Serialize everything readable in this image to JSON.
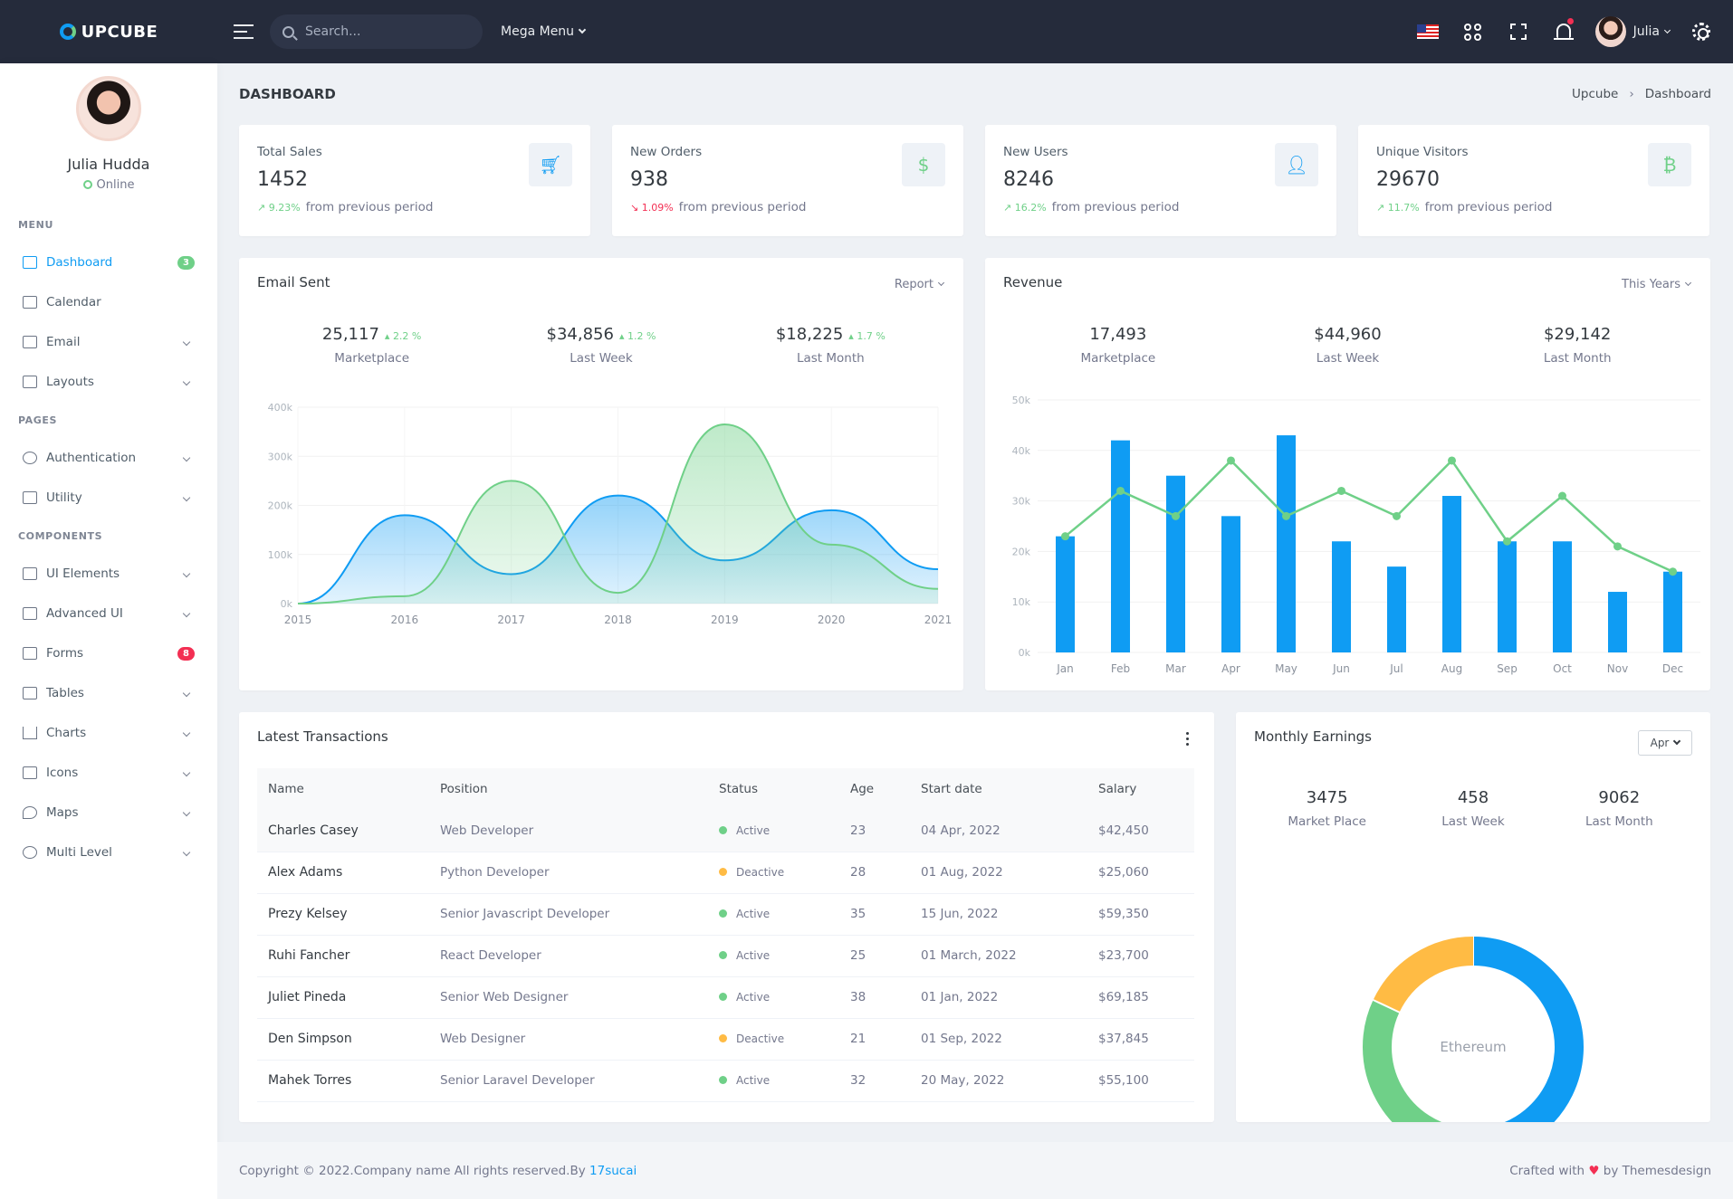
{
  "topbar": {
    "brand": "UPCUBE",
    "search_placeholder": "Search...",
    "mega_menu": "Mega Menu",
    "user_name": "Julia"
  },
  "sidebar": {
    "profile_name": "Julia Hudda",
    "profile_status": "Online",
    "sections": {
      "menu": "MENU",
      "pages": "PAGES",
      "components": "COMPONENTS"
    },
    "items": [
      {
        "label": "Dashboard",
        "badge": "3"
      },
      {
        "label": "Calendar"
      },
      {
        "label": "Email"
      },
      {
        "label": "Layouts"
      },
      {
        "label": "Authentication"
      },
      {
        "label": "Utility"
      },
      {
        "label": "UI Elements"
      },
      {
        "label": "Advanced UI"
      },
      {
        "label": "Forms",
        "badge": "8"
      },
      {
        "label": "Tables"
      },
      {
        "label": "Charts"
      },
      {
        "label": "Icons"
      },
      {
        "label": "Maps"
      },
      {
        "label": "Multi Level"
      }
    ]
  },
  "page": {
    "title": "DASHBOARD",
    "breadcrumb": [
      "Upcube",
      "Dashboard"
    ]
  },
  "stats": [
    {
      "label": "Total Sales",
      "value": "1452",
      "change": "9.23%",
      "direction": "up",
      "note": "from previous period",
      "icon": "cart-icon"
    },
    {
      "label": "New Orders",
      "value": "938",
      "change": "1.09%",
      "direction": "down",
      "note": "from previous period",
      "icon": "dollar-icon"
    },
    {
      "label": "New Users",
      "value": "8246",
      "change": "16.2%",
      "direction": "up",
      "note": "from previous period",
      "icon": "user-icon"
    },
    {
      "label": "Unique Visitors",
      "value": "29670",
      "change": "11.7%",
      "direction": "up",
      "note": "from previous period",
      "icon": "bitcoin-icon"
    }
  ],
  "email_card": {
    "title": "Email Sent",
    "menu": "Report",
    "summary": [
      {
        "value": "25,117",
        "pct": "2.2 %",
        "label": "Marketplace"
      },
      {
        "value": "$34,856",
        "pct": "1.2 %",
        "label": "Last Week"
      },
      {
        "value": "$18,225",
        "pct": "1.7 %",
        "label": "Last Month"
      }
    ]
  },
  "revenue_card": {
    "title": "Revenue",
    "menu": "This Years",
    "summary": [
      {
        "value": "17,493",
        "label": "Marketplace"
      },
      {
        "value": "$44,960",
        "label": "Last Week"
      },
      {
        "value": "$29,142",
        "label": "Last Month"
      }
    ]
  },
  "transactions": {
    "title": "Latest Transactions",
    "columns": [
      "Name",
      "Position",
      "Status",
      "Age",
      "Start date",
      "Salary"
    ],
    "rows": [
      [
        "Charles Casey",
        "Web Developer",
        "Active",
        "23",
        "04 Apr, 2022",
        "$42,450"
      ],
      [
        "Alex Adams",
        "Python Developer",
        "Deactive",
        "28",
        "01 Aug, 2022",
        "$25,060"
      ],
      [
        "Prezy Kelsey",
        "Senior Javascript Developer",
        "Active",
        "35",
        "15 Jun, 2022",
        "$59,350"
      ],
      [
        "Ruhi Fancher",
        "React Developer",
        "Active",
        "25",
        "01 March, 2022",
        "$23,700"
      ],
      [
        "Juliet Pineda",
        "Senior Web Designer",
        "Active",
        "38",
        "01 Jan, 2022",
        "$69,185"
      ],
      [
        "Den Simpson",
        "Web Designer",
        "Deactive",
        "21",
        "01 Sep, 2022",
        "$37,845"
      ],
      [
        "Mahek Torres",
        "Senior Laravel Developer",
        "Active",
        "32",
        "20 May, 2022",
        "$55,100"
      ]
    ]
  },
  "earnings_card": {
    "title": "Monthly Earnings",
    "selected_month": "Apr",
    "summary": [
      {
        "value": "3475",
        "label": "Market Place"
      },
      {
        "value": "458",
        "label": "Last Week"
      },
      {
        "value": "9062",
        "label": "Last Month"
      }
    ]
  },
  "footer": {
    "copyright": "Copyright © 2022.Company name All rights reserved.By ",
    "link": "17sucai",
    "crafted_prefix": "Crafted with",
    "crafted_suffix": "by Themesdesign"
  },
  "colors": {
    "primary": "#0f9cf3",
    "success": "#6fd088",
    "danger": "#f32f53",
    "warning": "#ffbb44",
    "topbar": "#252b3b"
  },
  "chart_data": [
    {
      "type": "area",
      "x": [
        "2015",
        "2016",
        "2017",
        "2018",
        "2019",
        "2020",
        "2021"
      ],
      "ylim": [
        0,
        400000
      ],
      "yticks": [
        "0k",
        "100k",
        "200k",
        "300k",
        "400k"
      ],
      "series": [
        {
          "values": [
            0,
            180000,
            60000,
            220000,
            88000,
            190000,
            70000
          ],
          "color": "#0f9cf3"
        },
        {
          "values": [
            0,
            15000,
            250000,
            22000,
            365000,
            120000,
            30000
          ],
          "color": "#6fd088"
        }
      ]
    },
    {
      "type": "bar",
      "categories": [
        "Jan",
        "Feb",
        "Mar",
        "Apr",
        "May",
        "Jun",
        "Jul",
        "Aug",
        "Sep",
        "Oct",
        "Nov",
        "Dec"
      ],
      "ylim": [
        0,
        50000
      ],
      "yticks": [
        "0k",
        "10k",
        "20k",
        "30k",
        "40k",
        "50k"
      ],
      "series": [
        {
          "values": [
            23000,
            42000,
            35000,
            27000,
            43000,
            22000,
            17000,
            31000,
            22000,
            22000,
            12000,
            16000
          ],
          "color": "#0f9cf3"
        },
        {
          "values": [
            23000,
            32000,
            27000,
            38000,
            27000,
            32000,
            27000,
            38000,
            22000,
            31000,
            21000,
            16000
          ],
          "color": "#6fd088",
          "type": "line"
        }
      ]
    },
    {
      "type": "pie",
      "center_label": "Ethereum",
      "slices": [
        {
          "value": 52,
          "color": "#0f9cf3"
        },
        {
          "value": 30,
          "color": "#6fd088"
        },
        {
          "value": 18,
          "color": "#ffbb44"
        }
      ]
    }
  ]
}
